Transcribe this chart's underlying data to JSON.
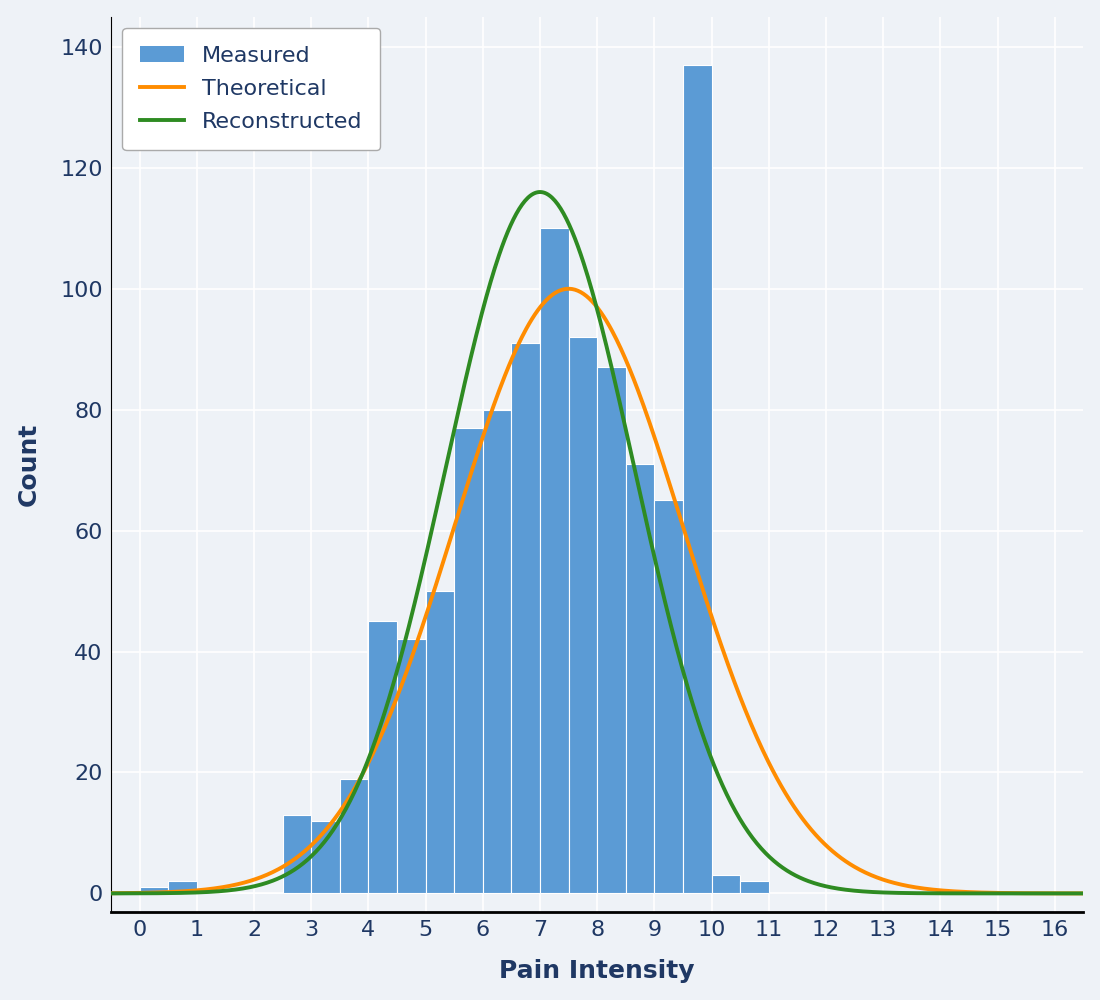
{
  "bars": [
    [
      0.0,
      1
    ],
    [
      0.5,
      2
    ],
    [
      1.0,
      0
    ],
    [
      1.5,
      0
    ],
    [
      2.0,
      0
    ],
    [
      2.5,
      13
    ],
    [
      3.0,
      12
    ],
    [
      3.5,
      19
    ],
    [
      4.0,
      45
    ],
    [
      4.5,
      42
    ],
    [
      5.0,
      50
    ],
    [
      5.5,
      77
    ],
    [
      6.0,
      80
    ],
    [
      6.5,
      91
    ],
    [
      7.0,
      110
    ],
    [
      7.5,
      92
    ],
    [
      8.0,
      87
    ],
    [
      8.5,
      71
    ],
    [
      9.0,
      65
    ],
    [
      9.5,
      137
    ],
    [
      10.0,
      3
    ],
    [
      10.5,
      2
    ]
  ],
  "bar_width": 0.5,
  "bar_color": "#5b9bd5",
  "bar_edgecolor": "white",
  "bar_linewidth": 0.8,
  "theoretical_mu": 7.5,
  "theoretical_sigma": 2.0,
  "theoretical_amplitude": 100.0,
  "reconstructed_mu": 7.0,
  "reconstructed_sigma": 1.65,
  "reconstructed_amplitude": 116.0,
  "orange_color": "#ff8c00",
  "green_color": "#2e8b22",
  "xlabel": "Pain Intensity",
  "ylabel": "Count",
  "xlim": [
    -0.5,
    16.5
  ],
  "ylim": [
    -3,
    145
  ],
  "xticks": [
    0,
    1,
    2,
    3,
    4,
    5,
    6,
    7,
    8,
    9,
    10,
    11,
    12,
    13,
    14,
    15,
    16
  ],
  "yticks": [
    0,
    20,
    40,
    60,
    80,
    100,
    120,
    140
  ],
  "legend_labels": [
    "Measured",
    "Theoretical",
    "Reconstructed"
  ],
  "bg_color": "#eef2f7",
  "grid_color": "#ffffff",
  "label_color": "#1f3864",
  "axis_label_fontsize": 18,
  "tick_fontsize": 16,
  "legend_fontsize": 16,
  "line_width": 2.8,
  "bottom_spine_color": "black",
  "left_spine_color": "black"
}
